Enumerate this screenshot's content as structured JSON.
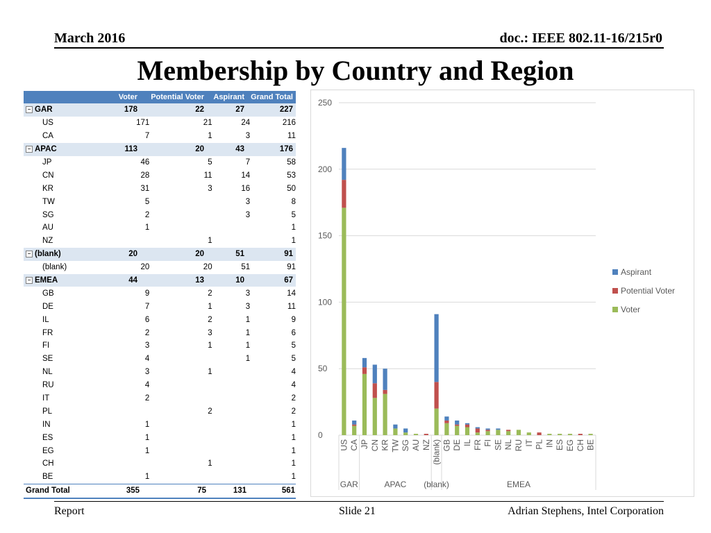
{
  "header": {
    "date": "March 2016",
    "doc": "doc.: IEEE 802.11-16/215r0"
  },
  "title": "Membership by Country and Region",
  "footer": {
    "left": "Report",
    "center": "Slide 21",
    "right": "Adrian Stephens, Intel Corporation"
  },
  "table": {
    "columns": [
      "Voter",
      "Potential Voter",
      "Aspirant",
      "Grand Total"
    ],
    "rows": [
      {
        "type": "group",
        "label": "GAR",
        "voter": "178",
        "potential": "22",
        "aspirant": "27",
        "total": "227"
      },
      {
        "type": "sub",
        "label": "US",
        "voter": "171",
        "potential": "21",
        "aspirant": "24",
        "total": "216"
      },
      {
        "type": "sub",
        "label": "CA",
        "voter": "7",
        "potential": "1",
        "aspirant": "3",
        "total": "11"
      },
      {
        "type": "group",
        "label": "APAC",
        "voter": "113",
        "potential": "20",
        "aspirant": "43",
        "total": "176"
      },
      {
        "type": "sub",
        "label": "JP",
        "voter": "46",
        "potential": "5",
        "aspirant": "7",
        "total": "58"
      },
      {
        "type": "sub",
        "label": "CN",
        "voter": "28",
        "potential": "11",
        "aspirant": "14",
        "total": "53"
      },
      {
        "type": "sub",
        "label": "KR",
        "voter": "31",
        "potential": "3",
        "aspirant": "16",
        "total": "50"
      },
      {
        "type": "sub",
        "label": "TW",
        "voter": "5",
        "potential": "",
        "aspirant": "3",
        "total": "8"
      },
      {
        "type": "sub",
        "label": "SG",
        "voter": "2",
        "potential": "",
        "aspirant": "3",
        "total": "5"
      },
      {
        "type": "sub",
        "label": "AU",
        "voter": "1",
        "potential": "",
        "aspirant": "",
        "total": "1"
      },
      {
        "type": "sub",
        "label": "NZ",
        "voter": "",
        "potential": "1",
        "aspirant": "",
        "total": "1"
      },
      {
        "type": "group",
        "label": "(blank)",
        "voter": "20",
        "potential": "20",
        "aspirant": "51",
        "total": "91"
      },
      {
        "type": "sub",
        "label": "(blank)",
        "voter": "20",
        "potential": "20",
        "aspirant": "51",
        "total": "91"
      },
      {
        "type": "group",
        "label": "EMEA",
        "voter": "44",
        "potential": "13",
        "aspirant": "10",
        "total": "67"
      },
      {
        "type": "sub",
        "label": "GB",
        "voter": "9",
        "potential": "2",
        "aspirant": "3",
        "total": "14"
      },
      {
        "type": "sub",
        "label": "DE",
        "voter": "7",
        "potential": "1",
        "aspirant": "3",
        "total": "11"
      },
      {
        "type": "sub",
        "label": "IL",
        "voter": "6",
        "potential": "2",
        "aspirant": "1",
        "total": "9"
      },
      {
        "type": "sub",
        "label": "FR",
        "voter": "2",
        "potential": "3",
        "aspirant": "1",
        "total": "6"
      },
      {
        "type": "sub",
        "label": "FI",
        "voter": "3",
        "potential": "1",
        "aspirant": "1",
        "total": "5"
      },
      {
        "type": "sub",
        "label": "SE",
        "voter": "4",
        "potential": "",
        "aspirant": "1",
        "total": "5"
      },
      {
        "type": "sub",
        "label": "NL",
        "voter": "3",
        "potential": "1",
        "aspirant": "",
        "total": "4"
      },
      {
        "type": "sub",
        "label": "RU",
        "voter": "4",
        "potential": "",
        "aspirant": "",
        "total": "4"
      },
      {
        "type": "sub",
        "label": "IT",
        "voter": "2",
        "potential": "",
        "aspirant": "",
        "total": "2"
      },
      {
        "type": "sub",
        "label": "PL",
        "voter": "",
        "potential": "2",
        "aspirant": "",
        "total": "2"
      },
      {
        "type": "sub",
        "label": "IN",
        "voter": "1",
        "potential": "",
        "aspirant": "",
        "total": "1"
      },
      {
        "type": "sub",
        "label": "ES",
        "voter": "1",
        "potential": "",
        "aspirant": "",
        "total": "1"
      },
      {
        "type": "sub",
        "label": "EG",
        "voter": "1",
        "potential": "",
        "aspirant": "",
        "total": "1"
      },
      {
        "type": "sub",
        "label": "CH",
        "voter": "",
        "potential": "1",
        "aspirant": "",
        "total": "1"
      },
      {
        "type": "sub",
        "label": "BE",
        "voter": "1",
        "potential": "",
        "aspirant": "",
        "total": "1"
      }
    ],
    "grand_total": {
      "label": "Grand Total",
      "voter": "355",
      "potential": "75",
      "aspirant": "131",
      "total": "561"
    }
  },
  "chart_data": {
    "type": "bar",
    "stacked": true,
    "categories": [
      "US",
      "CA",
      "JP",
      "CN",
      "KR",
      "TW",
      "SG",
      "AU",
      "NZ",
      "(blank)",
      "GB",
      "DE",
      "IL",
      "FR",
      "FI",
      "SE",
      "NL",
      "RU",
      "IT",
      "PL",
      "IN",
      "ES",
      "EG",
      "CH",
      "BE"
    ],
    "groups": [
      {
        "label": "GAR",
        "categories": [
          "US",
          "CA"
        ]
      },
      {
        "label": "APAC",
        "categories": [
          "JP",
          "CN",
          "KR",
          "TW",
          "SG",
          "AU",
          "NZ"
        ]
      },
      {
        "label": "(blank)",
        "categories": [
          "(blank)"
        ]
      },
      {
        "label": "EMEA",
        "categories": [
          "GB",
          "DE",
          "IL",
          "FR",
          "FI",
          "SE",
          "NL",
          "RU",
          "IT",
          "PL",
          "IN",
          "ES",
          "EG",
          "CH",
          "BE"
        ]
      }
    ],
    "series": [
      {
        "name": "Voter",
        "color": "#9bbb59",
        "values": [
          171,
          7,
          46,
          28,
          31,
          5,
          2,
          1,
          0,
          20,
          9,
          7,
          6,
          2,
          3,
          4,
          3,
          4,
          2,
          0,
          1,
          1,
          1,
          0,
          1
        ]
      },
      {
        "name": "Potential Voter",
        "color": "#c0504d",
        "values": [
          21,
          1,
          5,
          11,
          3,
          0,
          0,
          0,
          1,
          20,
          2,
          1,
          2,
          3,
          1,
          0,
          1,
          0,
          0,
          2,
          0,
          0,
          0,
          1,
          0
        ]
      },
      {
        "name": "Aspirant",
        "color": "#4f81bd",
        "values": [
          24,
          3,
          7,
          14,
          16,
          3,
          3,
          0,
          0,
          51,
          3,
          3,
          1,
          1,
          1,
          1,
          0,
          0,
          0,
          0,
          0,
          0,
          0,
          0,
          0
        ]
      }
    ],
    "legend_order": [
      "Aspirant",
      "Potential Voter",
      "Voter"
    ],
    "legend_position": "right",
    "yticks": [
      "0",
      "50",
      "100",
      "150",
      "200",
      "250"
    ],
    "ylim": [
      0,
      250
    ],
    "grid": true
  }
}
